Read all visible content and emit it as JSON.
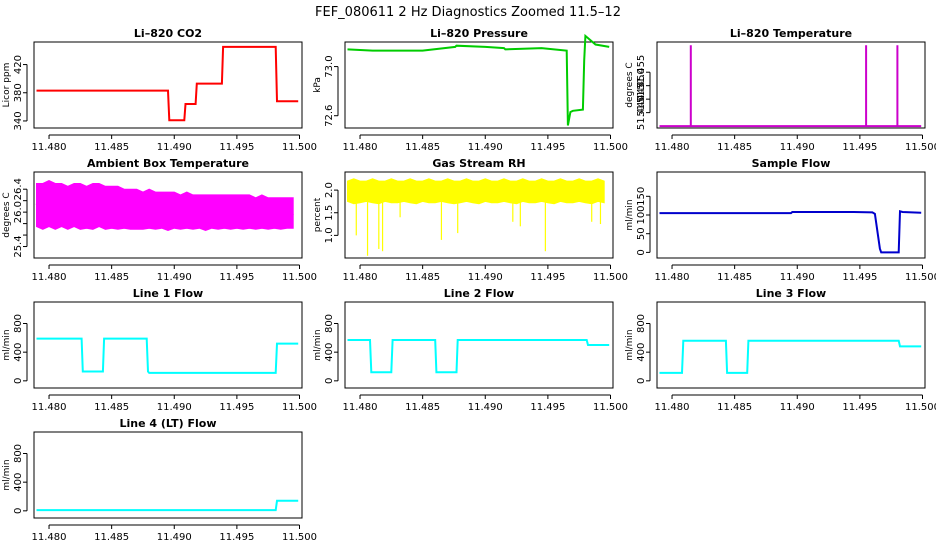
{
  "figure": {
    "title": "FEF_080611  2 Hz Diagnostics Zoomed 11.5–12"
  },
  "chart_data": [
    {
      "type": "line",
      "title": "Li–820 CO2",
      "ylabel": "Licor ppm",
      "xlim": [
        11.4788,
        11.5002
      ],
      "ylim": [
        330,
        452
      ],
      "xticks": [
        11.48,
        11.485,
        11.49,
        11.495,
        11.5
      ],
      "xtick_labels": [
        "11.480",
        "11.485",
        "11.490",
        "11.495",
        "11.500"
      ],
      "yticks": [
        340,
        380,
        420
      ],
      "ytick_labels": [
        "340",
        "380",
        "420"
      ],
      "color": "#ff0000",
      "series": [
        {
          "x": [
            11.479,
            11.4895,
            11.4896,
            11.4908,
            11.4909,
            11.4917,
            11.4918,
            11.4938,
            11.4939,
            11.4981,
            11.4982,
            11.4999
          ],
          "y": [
            383,
            383,
            341,
            341,
            364,
            364,
            393,
            393,
            445,
            445,
            368,
            368
          ]
        }
      ]
    },
    {
      "type": "line",
      "title": "Li–820 Pressure",
      "ylabel": "kPa",
      "xlim": [
        11.4788,
        11.5002
      ],
      "ylim": [
        72.5,
        73.2
      ],
      "xticks": [
        11.48,
        11.485,
        11.49,
        11.495,
        11.5
      ],
      "xtick_labels": [
        "11.480",
        "11.485",
        "11.490",
        "11.495",
        "11.500"
      ],
      "yticks": [
        72.6,
        73.0
      ],
      "ytick_labels": [
        "72.6",
        "73.0"
      ],
      "color": "#00cc00",
      "series": [
        {
          "x": [
            11.479,
            11.481,
            11.485,
            11.4876,
            11.4877,
            11.49,
            11.4915,
            11.4916,
            11.4945,
            11.4965,
            11.4966,
            11.4968,
            11.497,
            11.4978,
            11.4979,
            11.498,
            11.4988,
            11.4999
          ],
          "y": [
            73.14,
            73.13,
            73.13,
            73.16,
            73.17,
            73.16,
            73.15,
            73.14,
            73.15,
            73.13,
            72.52,
            72.63,
            72.64,
            72.65,
            73.05,
            73.25,
            73.18,
            73.16
          ]
        }
      ]
    },
    {
      "type": "line",
      "title": "Li–820 Temperature",
      "ylabel": "degrees C",
      "xlim": [
        11.4788,
        11.5002
      ],
      "ylim": [
        51.4343,
        51.4662
      ],
      "xticks": [
        11.48,
        11.485,
        11.49,
        11.495,
        11.5
      ],
      "xtick_labels": [
        "11.480",
        "11.485",
        "11.490",
        "11.495",
        "11.500"
      ],
      "yticks": [
        51.44,
        51.445,
        51.45,
        51.455
      ],
      "ytick_labels": [
        "51.440",
        "51.445",
        "51.450",
        "51.455"
      ],
      "color": "#cc00cc",
      "series": [
        {
          "x": [
            11.479,
            11.4815,
            11.4815,
            11.4815,
            11.4955,
            11.4955,
            11.4955,
            11.498,
            11.498,
            11.498,
            11.4999
          ],
          "y": [
            51.435,
            51.435,
            51.465,
            51.435,
            51.435,
            51.465,
            51.435,
            51.435,
            51.465,
            51.435,
            51.435
          ]
        }
      ]
    },
    {
      "type": "line",
      "title": "Ambient Box Temperature",
      "ylabel": "degrees C",
      "xlim": [
        11.4788,
        11.5002
      ],
      "ylim": [
        25.2,
        26.7
      ],
      "xticks": [
        11.48,
        11.485,
        11.49,
        11.495,
        11.5
      ],
      "xtick_labels": [
        "11.480",
        "11.485",
        "11.490",
        "11.495",
        "11.500"
      ],
      "yticks": [
        25.4,
        25.6,
        25.8,
        26.0,
        26.2,
        26.4
      ],
      "ytick_labels": [
        "25.4",
        "",
        "",
        "26.0",
        "",
        "26.4"
      ],
      "color": "#ff00ff",
      "series": [
        {
          "x": [
            11.479,
            11.4795,
            11.48,
            11.4805,
            11.481,
            11.4815,
            11.482,
            11.4825,
            11.483,
            11.4835,
            11.484,
            11.4845,
            11.485,
            11.4855,
            11.486,
            11.4865,
            11.487,
            11.4875,
            11.488,
            11.4885,
            11.489,
            11.4895,
            11.49,
            11.4905,
            11.491,
            11.4915,
            11.492,
            11.4925,
            11.493,
            11.4935,
            11.494,
            11.4945,
            11.495,
            11.4955,
            11.496,
            11.4965,
            11.497,
            11.4975,
            11.498,
            11.4985,
            11.499,
            11.4995
          ],
          "y": [
            26.15,
            25.95,
            26.3,
            25.85,
            26.2,
            25.9,
            26.25,
            25.8,
            26.1,
            25.95,
            26.3,
            25.85,
            26.15,
            25.9,
            26.2,
            25.95,
            26.1,
            25.85,
            26.2,
            25.9,
            26.05,
            25.85,
            26.15,
            25.9,
            26.05,
            25.85,
            26.1,
            25.9,
            26.0,
            25.85,
            26.1,
            25.9,
            26.05,
            25.85,
            26.0,
            25.9,
            26.05,
            25.85,
            26.0,
            25.9,
            26.05,
            25.95
          ],
          "band_low": [
            25.75,
            25.7,
            25.75,
            25.7,
            25.75,
            25.7,
            25.75,
            25.7,
            25.72,
            25.7,
            25.75,
            25.7,
            25.72,
            25.7,
            25.72,
            25.7,
            25.7,
            25.7,
            25.72,
            25.7,
            25.72,
            25.68,
            25.72,
            25.7,
            25.72,
            25.7,
            25.72,
            25.68,
            25.72,
            25.7,
            25.72,
            25.7,
            25.72,
            25.7,
            25.72,
            25.7,
            25.72,
            25.7,
            25.72,
            25.7,
            25.72,
            25.72
          ],
          "band_high": [
            26.5,
            26.5,
            26.55,
            26.5,
            26.5,
            26.45,
            26.5,
            26.5,
            26.45,
            26.5,
            26.5,
            26.45,
            26.45,
            26.45,
            26.4,
            26.4,
            26.4,
            26.35,
            26.4,
            26.35,
            26.35,
            26.35,
            26.35,
            26.3,
            26.35,
            26.3,
            26.3,
            26.3,
            26.3,
            26.3,
            26.3,
            26.3,
            26.3,
            26.3,
            26.3,
            26.25,
            26.3,
            26.25,
            26.25,
            26.25,
            26.25,
            26.25
          ]
        }
      ]
    },
    {
      "type": "line",
      "title": "Gas Stream RH",
      "ylabel": "percent",
      "xlim": [
        11.4788,
        11.5002
      ],
      "ylim": [
        0.5,
        2.4
      ],
      "xticks": [
        11.48,
        11.485,
        11.49,
        11.495,
        11.5
      ],
      "xtick_labels": [
        "11.480",
        "11.485",
        "11.490",
        "11.495",
        "11.500"
      ],
      "yticks": [
        1.0,
        1.5,
        2.0
      ],
      "ytick_labels": [
        "1.0",
        "1.5",
        "2.0"
      ],
      "color": "#ffff00",
      "series": [
        {
          "x": [
            11.479,
            11.4795,
            11.48,
            11.4805,
            11.481,
            11.4815,
            11.482,
            11.4825,
            11.483,
            11.4835,
            11.484,
            11.4845,
            11.485,
            11.4855,
            11.486,
            11.4865,
            11.487,
            11.4875,
            11.488,
            11.4885,
            11.489,
            11.4895,
            11.49,
            11.4905,
            11.491,
            11.4915,
            11.492,
            11.4925,
            11.493,
            11.4935,
            11.494,
            11.4945,
            11.495,
            11.4955,
            11.496,
            11.4965,
            11.497,
            11.4975,
            11.498,
            11.4985,
            11.499,
            11.4995
          ],
          "y": [
            2.0,
            1.9,
            2.05,
            1.95,
            2.0,
            1.9,
            2.05,
            1.95,
            2.0,
            1.95,
            2.0,
            1.9,
            2.05,
            1.95,
            2.0,
            1.95,
            2.0,
            1.9,
            2.05,
            1.95,
            2.0,
            1.95,
            2.0,
            1.95,
            2.05,
            1.95,
            2.0,
            1.95,
            2.0,
            1.95,
            2.05,
            1.95,
            2.0,
            1.95,
            2.0,
            1.9,
            2.0,
            1.95,
            2.05,
            1.95,
            2.0,
            1.95
          ],
          "band_low": [
            1.75,
            1.7,
            1.72,
            1.75,
            1.72,
            1.7,
            1.75,
            1.72,
            1.72,
            1.75,
            1.72,
            1.7,
            1.75,
            1.72,
            1.72,
            1.75,
            1.72,
            1.7,
            1.72,
            1.75,
            1.72,
            1.7,
            1.75,
            1.72,
            1.72,
            1.75,
            1.72,
            1.7,
            1.75,
            1.72,
            1.72,
            1.75,
            1.72,
            1.7,
            1.75,
            1.72,
            1.72,
            1.75,
            1.72,
            1.7,
            1.75,
            1.72
          ],
          "band_high": [
            2.2,
            2.25,
            2.2,
            2.2,
            2.25,
            2.2,
            2.2,
            2.25,
            2.2,
            2.2,
            2.25,
            2.2,
            2.2,
            2.25,
            2.2,
            2.2,
            2.25,
            2.2,
            2.2,
            2.25,
            2.2,
            2.2,
            2.25,
            2.2,
            2.2,
            2.25,
            2.2,
            2.2,
            2.25,
            2.2,
            2.2,
            2.25,
            2.2,
            2.2,
            2.25,
            2.2,
            2.2,
            2.25,
            2.2,
            2.2,
            2.25,
            2.2
          ]
        }
      ],
      "dips": [
        {
          "x": 11.4797,
          "y": 1.0
        },
        {
          "x": 11.4806,
          "y": 0.55
        },
        {
          "x": 11.4815,
          "y": 0.7
        },
        {
          "x": 11.4818,
          "y": 0.65
        },
        {
          "x": 11.4832,
          "y": 1.4
        },
        {
          "x": 11.4865,
          "y": 0.9
        },
        {
          "x": 11.4878,
          "y": 1.05
        },
        {
          "x": 11.4922,
          "y": 1.3
        },
        {
          "x": 11.4928,
          "y": 1.2
        },
        {
          "x": 11.4948,
          "y": 0.65
        },
        {
          "x": 11.4985,
          "y": 1.3
        },
        {
          "x": 11.4992,
          "y": 1.25
        }
      ]
    },
    {
      "type": "line",
      "title": "Sample Flow",
      "ylabel": "ml/min",
      "xlim": [
        11.4788,
        11.5002
      ],
      "ylim": [
        -15,
        215
      ],
      "xticks": [
        11.48,
        11.485,
        11.49,
        11.495,
        11.5
      ],
      "xtick_labels": [
        "11.480",
        "11.485",
        "11.490",
        "11.495",
        "11.500"
      ],
      "yticks": [
        0,
        50,
        100,
        150
      ],
      "ytick_labels": [
        "0",
        "50",
        "100",
        "150"
      ],
      "color": "#0000cc",
      "series": [
        {
          "x": [
            11.479,
            11.4895,
            11.4896,
            11.4945,
            11.496,
            11.4962,
            11.4966,
            11.4967,
            11.4981,
            11.4982,
            11.4984,
            11.4999
          ],
          "y": [
            105,
            105,
            108,
            108,
            107,
            103,
            10,
            0,
            0,
            110,
            108,
            106
          ]
        }
      ]
    },
    {
      "type": "line",
      "title": "Line 1 Flow",
      "ylabel": "ml/min",
      "xlim": [
        11.4788,
        11.5002
      ],
      "ylim": [
        -100,
        1100
      ],
      "xticks": [
        11.48,
        11.485,
        11.49,
        11.495,
        11.5
      ],
      "xtick_labels": [
        "11.480",
        "11.485",
        "11.490",
        "11.495",
        "11.500"
      ],
      "yticks": [
        0,
        400,
        800
      ],
      "ytick_labels": [
        "0",
        "400",
        "800"
      ],
      "color": "#00ffff",
      "series": [
        {
          "x": [
            11.479,
            11.4826,
            11.4827,
            11.4843,
            11.4844,
            11.4878,
            11.4879,
            11.488,
            11.4981,
            11.4982,
            11.4999
          ],
          "y": [
            590,
            590,
            130,
            130,
            590,
            590,
            130,
            110,
            110,
            520,
            520
          ]
        }
      ]
    },
    {
      "type": "line",
      "title": "Line 2 Flow",
      "ylabel": "ml/min",
      "xlim": [
        11.4788,
        11.5002
      ],
      "ylim": [
        -100,
        1100
      ],
      "xticks": [
        11.48,
        11.485,
        11.49,
        11.495,
        11.5
      ],
      "xtick_labels": [
        "11.480",
        "11.485",
        "11.490",
        "11.495",
        "11.500"
      ],
      "yticks": [
        0,
        400,
        800
      ],
      "ytick_labels": [
        "0",
        "400",
        "800"
      ],
      "color": "#00ffff",
      "series": [
        {
          "x": [
            11.479,
            11.4808,
            11.4809,
            11.4825,
            11.4826,
            11.486,
            11.4861,
            11.4877,
            11.4878,
            11.4981,
            11.4982,
            11.4999
          ],
          "y": [
            570,
            570,
            120,
            120,
            570,
            570,
            120,
            120,
            570,
            570,
            500,
            500
          ]
        }
      ]
    },
    {
      "type": "line",
      "title": "Line 3 Flow",
      "ylabel": "ml/min",
      "xlim": [
        11.4788,
        11.5002
      ],
      "ylim": [
        -100,
        1100
      ],
      "xticks": [
        11.48,
        11.485,
        11.49,
        11.495,
        11.5
      ],
      "xtick_labels": [
        "11.480",
        "11.485",
        "11.490",
        "11.495",
        "11.500"
      ],
      "yticks": [
        0,
        400,
        800
      ],
      "ytick_labels": [
        "0",
        "400",
        "800"
      ],
      "color": "#00ffff",
      "series": [
        {
          "x": [
            11.479,
            11.4808,
            11.4809,
            11.4843,
            11.4844,
            11.486,
            11.4861,
            11.4981,
            11.4982,
            11.4999
          ],
          "y": [
            110,
            110,
            560,
            560,
            110,
            110,
            560,
            560,
            480,
            480
          ]
        }
      ]
    },
    {
      "type": "line",
      "title": "Line 4 (LT) Flow",
      "ylabel": "ml/min",
      "xlim": [
        11.4788,
        11.5002
      ],
      "ylim": [
        -100,
        1100
      ],
      "xticks": [
        11.48,
        11.485,
        11.49,
        11.495,
        11.5
      ],
      "xtick_labels": [
        "11.480",
        "11.485",
        "11.490",
        "11.495",
        "11.500"
      ],
      "yticks": [
        0,
        400,
        800
      ],
      "ytick_labels": [
        "0",
        "400",
        "800"
      ],
      "color": "#00ffff",
      "series": [
        {
          "x": [
            11.479,
            11.4981,
            11.4982,
            11.4999
          ],
          "y": [
            10,
            10,
            140,
            140
          ]
        }
      ]
    }
  ]
}
